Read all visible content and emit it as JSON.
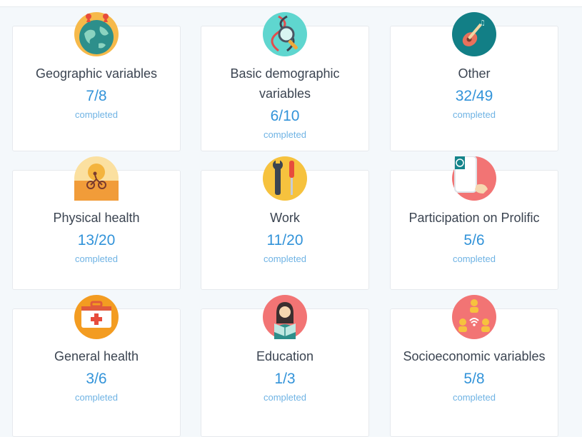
{
  "cards": [
    {
      "title": "Geographic variables",
      "count": "7/8",
      "status": "completed",
      "icon": "globe-icon"
    },
    {
      "title": "Basic demographic variables",
      "count": "6/10",
      "status": "completed",
      "icon": "dna-magnifier-icon"
    },
    {
      "title": "Other",
      "count": "32/49",
      "status": "completed",
      "icon": "guitar-icon"
    },
    {
      "title": "Physical health",
      "count": "13/20",
      "status": "completed",
      "icon": "cycling-icon"
    },
    {
      "title": "Work",
      "count": "11/20",
      "status": "completed",
      "icon": "tools-icon"
    },
    {
      "title": "Participation on Prolific",
      "count": "5/6",
      "status": "completed",
      "icon": "phone-hand-icon"
    },
    {
      "title": "General health",
      "count": "3/6",
      "status": "completed",
      "icon": "first-aid-kit-icon"
    },
    {
      "title": "Education",
      "count": "1/3",
      "status": "completed",
      "icon": "reader-icon"
    },
    {
      "title": "Socioeconomic variables",
      "count": "5/8",
      "status": "completed",
      "icon": "people-network-icon"
    }
  ],
  "colors": {
    "count": "#3293d9",
    "completed": "#6fb3e4",
    "title": "#3b4451"
  }
}
